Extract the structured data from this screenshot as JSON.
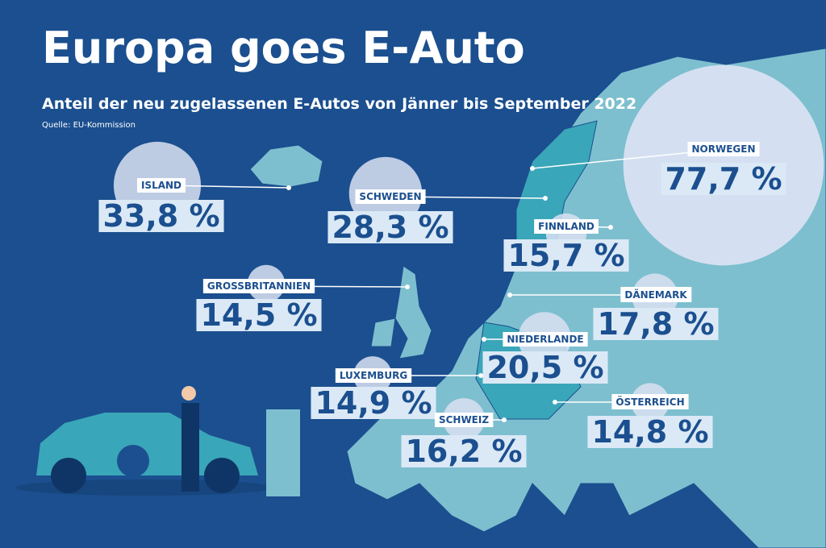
{
  "chart_data": {
    "type": "bubble",
    "title": "Europa goes E-Auto",
    "subtitle": "Anteil der neu zugelassenen E-Autos von Jänner bis September 2022",
    "source": "Quelle: EU-Kommission",
    "categories": [
      "ISLAND",
      "SCHWEDEN",
      "NORWEGEN",
      "FINNLAND",
      "GROSSBRITANNIEN",
      "DÄNEMARK",
      "NIEDERLANDE",
      "LUXEMBURG",
      "SCHWEIZ",
      "ÖSTERREICH"
    ],
    "values": [
      33.8,
      28.3,
      77.7,
      15.7,
      14.5,
      17.8,
      20.5,
      14.9,
      16.2,
      14.8
    ],
    "value_labels": [
      "33,8 %",
      "28,3 %",
      "77,7 %",
      "15,7 %",
      "14,5 %",
      "17,8 %",
      "20,5 %",
      "14,9 %",
      "16,2 %",
      "14,8 %"
    ],
    "color": "#d9e1f2"
  }
}
